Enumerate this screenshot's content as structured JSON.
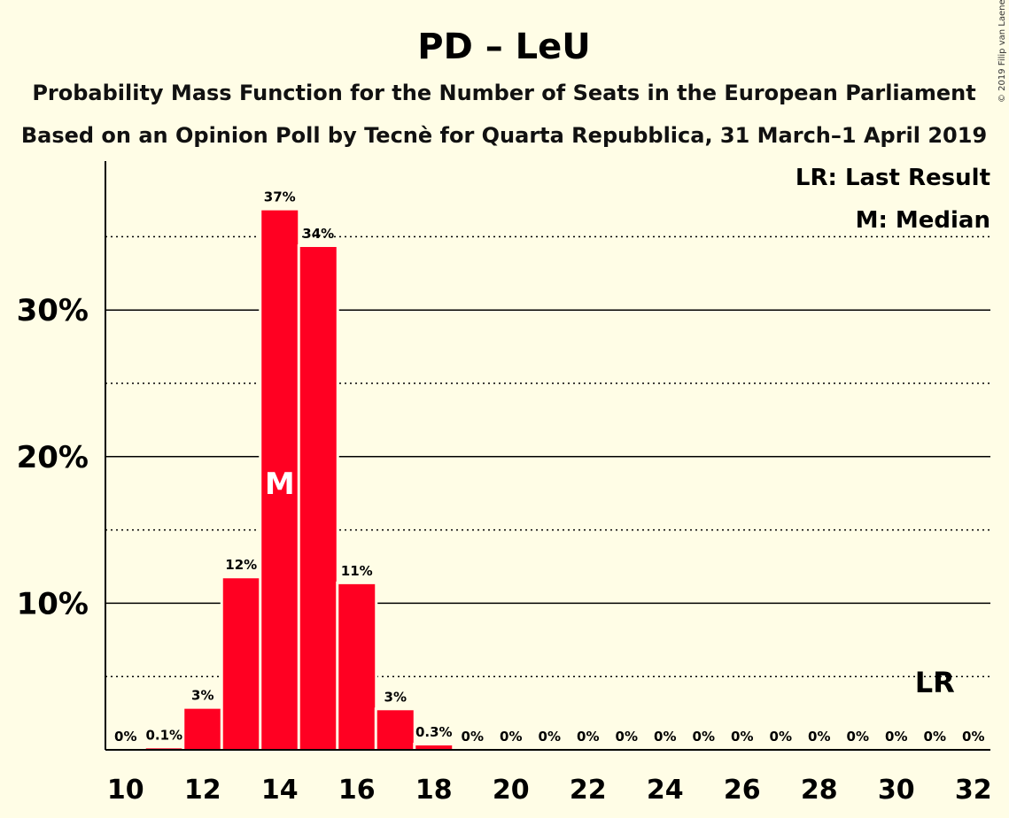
{
  "title": "PD – LeU",
  "subtitle1": "Probability Mass Function for the Number of Seats in the European Parliament",
  "subtitle2": "Based on an Opinion Poll by Tecnè for Quarta Repubblica, 31 March–1 April 2019",
  "copyright": "© 2019 Filip van Laenen",
  "legend": {
    "last_result": "LR: Last Result",
    "median": "M: Median"
  },
  "colors": {
    "background": "#FFFDE6",
    "bar": "#FF0022",
    "text": "#000000"
  },
  "chart_data": {
    "type": "bar",
    "title": "PD – LeU",
    "x": [
      10,
      11,
      12,
      13,
      14,
      15,
      16,
      17,
      18,
      19,
      20,
      21,
      22,
      23,
      24,
      25,
      26,
      27,
      28,
      29,
      30,
      31,
      32
    ],
    "values": [
      0,
      0.1,
      2.8,
      11.7,
      36.8,
      34.3,
      11.3,
      2.7,
      0.3,
      0,
      0,
      0,
      0,
      0,
      0,
      0,
      0,
      0,
      0,
      0,
      0,
      0,
      0
    ],
    "data_labels": [
      "0%",
      "0.1%",
      "3%",
      "12%",
      "37%",
      "34%",
      "11%",
      "3%",
      "0.3%",
      "0%",
      "0%",
      "0%",
      "0%",
      "0%",
      "0%",
      "0%",
      "0%",
      "0%",
      "0%",
      "0%",
      "0%",
      "0%",
      "0%"
    ],
    "xticks": [
      10,
      12,
      14,
      16,
      18,
      20,
      22,
      24,
      26,
      28,
      30,
      32
    ],
    "yticks": [
      {
        "value": 10,
        "label": "10%"
      },
      {
        "value": 20,
        "label": "20%"
      },
      {
        "value": 30,
        "label": "30%"
      }
    ],
    "ydotted": [
      5,
      15,
      25,
      35
    ],
    "ylim": [
      0,
      40
    ],
    "xlim": [
      9.5,
      32.5
    ],
    "median_seat": 14,
    "median_label": "M",
    "last_result_seat": 31,
    "last_result_label": "LR",
    "last_result_level": 5,
    "grid": true,
    "legend_position": "top-right"
  }
}
